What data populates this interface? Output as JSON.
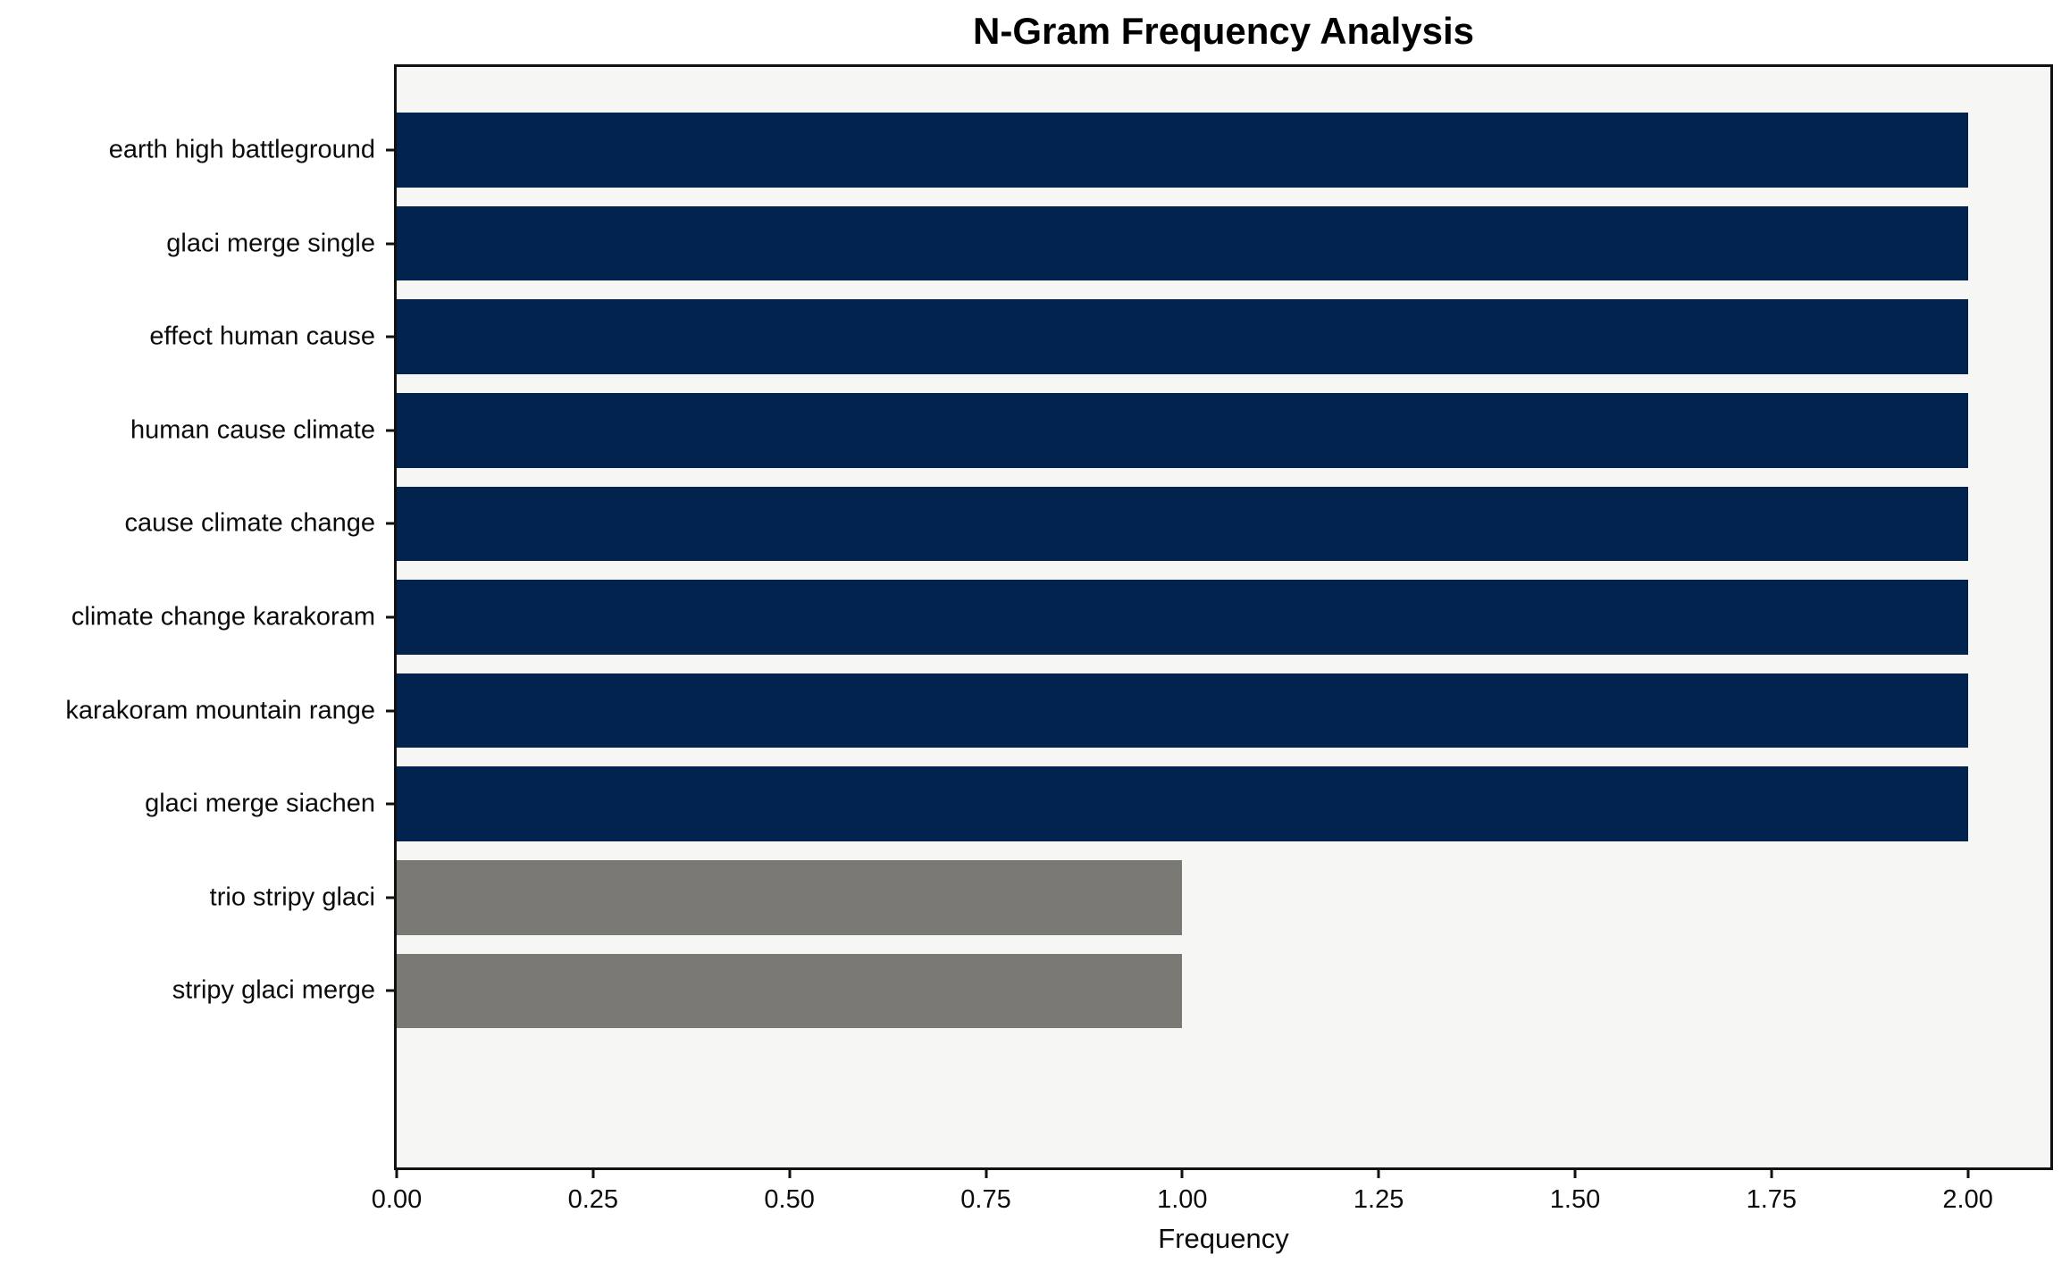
{
  "chart_data": {
    "type": "bar",
    "orientation": "horizontal",
    "title": "N-Gram Frequency Analysis",
    "xlabel": "Frequency",
    "ylabel": "",
    "categories": [
      "earth high battleground",
      "glaci merge single",
      "effect human cause",
      "human cause climate",
      "cause climate change",
      "climate change karakoram",
      "karakoram mountain range",
      "glaci merge siachen",
      "trio stripy glaci",
      "stripy glaci merge"
    ],
    "values": [
      2,
      2,
      2,
      2,
      2,
      2,
      2,
      2,
      1,
      1
    ],
    "bar_colors": [
      "#02234d",
      "#02234d",
      "#02234d",
      "#02234d",
      "#02234d",
      "#02234d",
      "#02234d",
      "#02234d",
      "#7a7974",
      "#7a7974"
    ],
    "xlim": [
      0,
      2.105
    ],
    "x_tick_values": [
      0,
      0.25,
      0.5,
      0.75,
      1.0,
      1.25,
      1.5,
      1.75,
      2.0
    ],
    "x_tick_labels": [
      "0.00",
      "0.25",
      "0.50",
      "0.75",
      "1.00",
      "1.25",
      "1.50",
      "1.75",
      "2.00"
    ],
    "grid": false,
    "legend": null,
    "bar_width_fraction": 0.8,
    "colors": {
      "bar_primary": "#02234d",
      "bar_secondary": "#7a7974",
      "plot_background": "#f6f6f4",
      "figure_background": "#ffffff",
      "spine": "#111111",
      "text": "#0b0b0b"
    }
  }
}
